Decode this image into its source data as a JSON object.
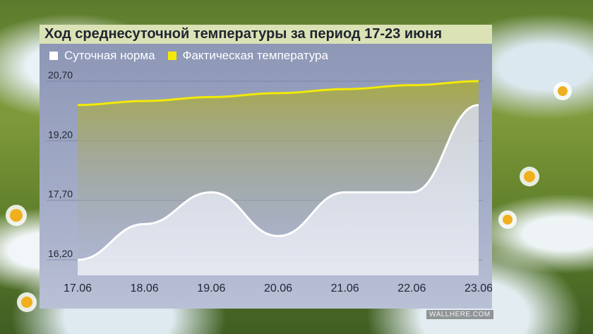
{
  "chart_data": {
    "type": "line",
    "title": "Ход среднесуточной температуры за период 17-23 июня",
    "categories": [
      "17.06",
      "18.06",
      "19.06",
      "20.06",
      "21.06",
      "22.06",
      "23.06"
    ],
    "ylim": [
      15.6,
      20.9
    ],
    "yticks": [
      "16,20",
      "17,70",
      "19,20",
      "20,70"
    ],
    "ytick_values": [
      16.2,
      17.7,
      19.2,
      20.7
    ],
    "grid": true,
    "legend_position": "top-left",
    "series": [
      {
        "name": "Суточная норма",
        "color": "#ffffff",
        "values": [
          16.2,
          17.1,
          17.9,
          16.8,
          17.9,
          17.9,
          20.1
        ]
      },
      {
        "name": "Фактическая температура",
        "color": "#f2ea06",
        "values": [
          20.1,
          20.2,
          20.3,
          20.4,
          20.5,
          20.6,
          20.7
        ]
      }
    ]
  },
  "watermark": "WALLHERE.COM"
}
